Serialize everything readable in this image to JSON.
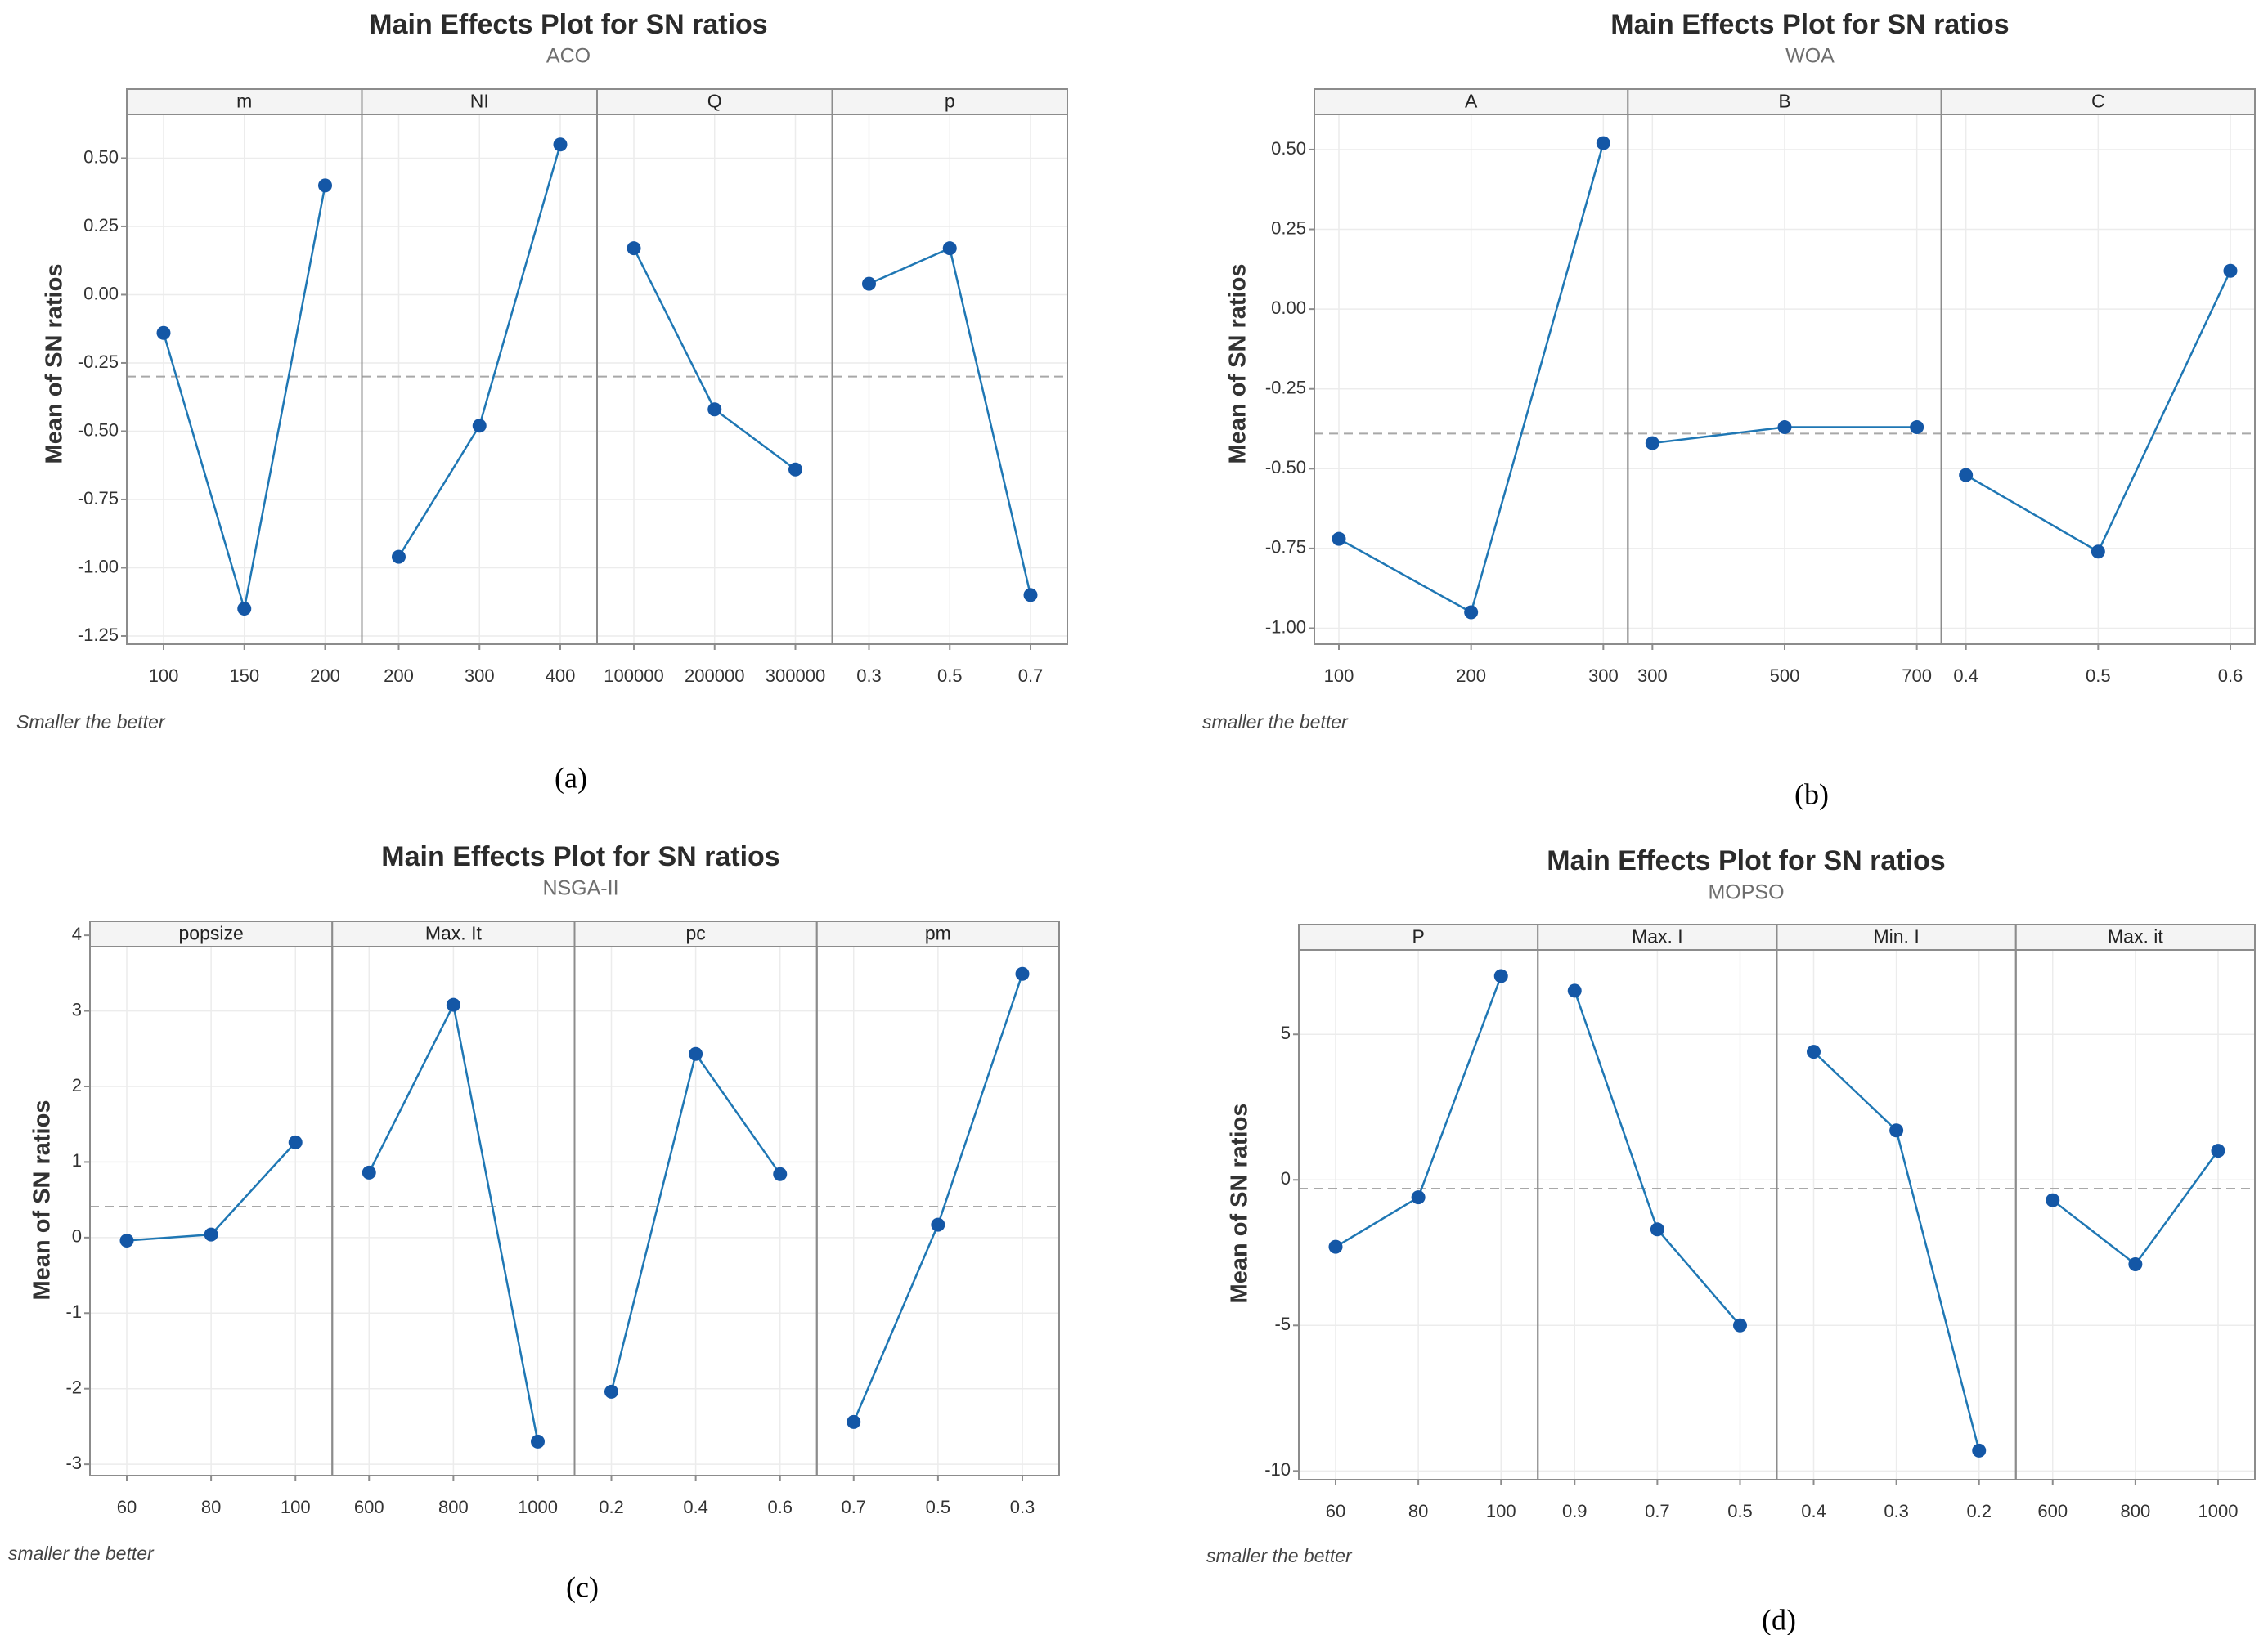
{
  "colors": {
    "line": "#1f77b4",
    "marker": "#1457a6",
    "reference": "#a8a8a8"
  },
  "chart_data": [
    {
      "type": "line",
      "title": "Main Effects Plot for SN ratios",
      "subtitle": "ACO",
      "ylabel": "Mean of SN ratios",
      "footnote": "Smaller the better",
      "caption": "(a)",
      "ylim": [
        -1.28,
        0.66
      ],
      "yticks": [
        0.5,
        0.25,
        0.0,
        -0.25,
        -0.5,
        -0.75,
        -1.0,
        -1.25
      ],
      "ytick_labels": [
        "0.50",
        "0.25",
        "0.00",
        "-0.25",
        "-0.50",
        "-0.75",
        "-1.00",
        "-1.25"
      ],
      "reference_mean": -0.3,
      "factors": [
        {
          "name": "m",
          "levels": [
            "100",
            "150",
            "200"
          ],
          "values": [
            -0.14,
            -1.15,
            0.4
          ]
        },
        {
          "name": "NI",
          "levels": [
            "200",
            "300",
            "400"
          ],
          "values": [
            -0.96,
            -0.48,
            0.55
          ]
        },
        {
          "name": "Q",
          "levels": [
            "100000",
            "200000",
            "300000"
          ],
          "values": [
            0.17,
            -0.42,
            -0.64
          ]
        },
        {
          "name": "p",
          "levels": [
            "0.3",
            "0.5",
            "0.7"
          ],
          "values": [
            0.04,
            0.17,
            -1.1
          ]
        }
      ]
    },
    {
      "type": "line",
      "title": "Main Effects Plot for SN ratios",
      "subtitle": "WOA",
      "ylabel": "Mean of SN ratios",
      "footnote": "smaller the better",
      "caption": "(b)",
      "ylim": [
        -1.05,
        0.61
      ],
      "yticks": [
        0.5,
        0.25,
        0.0,
        -0.25,
        -0.5,
        -0.75,
        -1.0
      ],
      "ytick_labels": [
        "0.50",
        "0.25",
        "0.00",
        "-0.25",
        "-0.50",
        "-0.75",
        "-1.00"
      ],
      "reference_mean": -0.39,
      "factors": [
        {
          "name": "A",
          "levels": [
            "100",
            "200",
            "300"
          ],
          "values": [
            -0.72,
            -0.95,
            0.52
          ]
        },
        {
          "name": "B",
          "levels": [
            "300",
            "500",
            "700"
          ],
          "values": [
            -0.42,
            -0.37,
            -0.37
          ]
        },
        {
          "name": "C",
          "levels": [
            "0.4",
            "0.5",
            "0.6"
          ],
          "values": [
            -0.52,
            -0.76,
            0.12
          ]
        }
      ]
    },
    {
      "type": "line",
      "title": "Main Effects Plot for SN ratios",
      "subtitle": "NSGA-II",
      "ylabel": "Mean of SN ratios",
      "footnote": "smaller the better",
      "caption": "(c)",
      "ylim": [
        -3.15,
        3.85
      ],
      "yticks": [
        4,
        3,
        2,
        1,
        0,
        -1,
        -2,
        -3
      ],
      "ytick_labels": [
        "4",
        "3",
        "2",
        "1",
        "0",
        "-1",
        "-2",
        "-3"
      ],
      "reference_mean": 0.41,
      "factors": [
        {
          "name": "popsize",
          "levels": [
            "60",
            "80",
            "100"
          ],
          "values": [
            -0.04,
            0.04,
            1.26
          ]
        },
        {
          "name": "Max. It",
          "levels": [
            "600",
            "800",
            "1000"
          ],
          "values": [
            0.86,
            3.08,
            -2.7
          ]
        },
        {
          "name": "pc",
          "levels": [
            "0.2",
            "0.4",
            "0.6"
          ],
          "values": [
            -2.04,
            2.43,
            0.84
          ]
        },
        {
          "name": "pm",
          "levels": [
            "0.7",
            "0.5",
            "0.3"
          ],
          "values": [
            -2.44,
            0.17,
            3.49
          ]
        }
      ]
    },
    {
      "type": "line",
      "title": "Main Effects Plot for SN ratios",
      "subtitle": "MOPSO",
      "ylabel": "Mean of SN ratios",
      "footnote": "smaller the better",
      "caption": "(d)",
      "ylim": [
        -10.3,
        7.9
      ],
      "yticks": [
        5,
        0,
        -5,
        -10
      ],
      "ytick_labels": [
        "5",
        "0",
        "-5",
        "-10"
      ],
      "reference_mean": -0.3,
      "factors": [
        {
          "name": "P",
          "levels": [
            "60",
            "80",
            "100"
          ],
          "values": [
            -2.3,
            -0.6,
            7.0
          ]
        },
        {
          "name": "Max. I",
          "levels": [
            "0.9",
            "0.7",
            "0.5"
          ],
          "values": [
            6.5,
            -1.7,
            -5.0
          ]
        },
        {
          "name": "Min. I",
          "levels": [
            "0.4",
            "0.3",
            "0.2"
          ],
          "values": [
            4.4,
            1.7,
            -9.3
          ]
        },
        {
          "name": "Max. it",
          "levels": [
            "600",
            "800",
            "1000"
          ],
          "values": [
            -0.7,
            -2.9,
            1.0
          ]
        }
      ]
    }
  ]
}
